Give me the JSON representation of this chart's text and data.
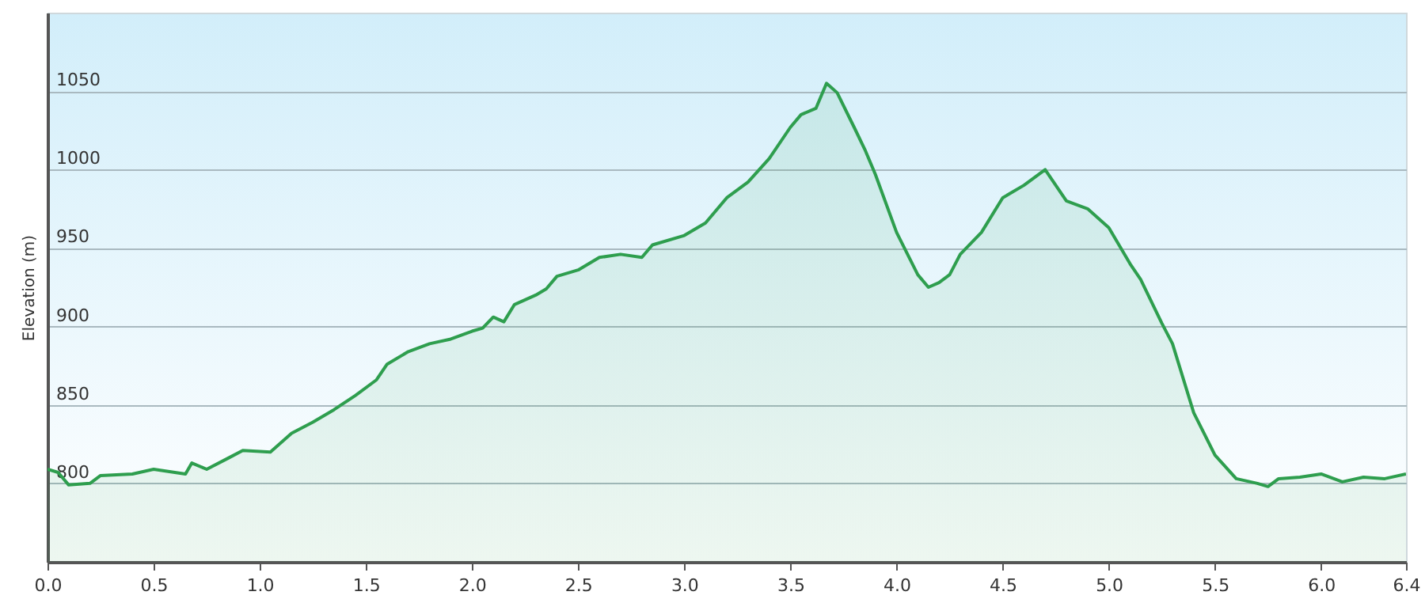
{
  "chart_data": {
    "type": "area",
    "ylabel": "Elevation (m)",
    "x": [
      0,
      0.05,
      0.1,
      0.2,
      0.25,
      0.4,
      0.5,
      0.6,
      0.65,
      0.68,
      0.75,
      0.85,
      0.92,
      1.05,
      1.15,
      1.25,
      1.35,
      1.45,
      1.55,
      1.6,
      1.7,
      1.8,
      1.9,
      2.0,
      2.05,
      2.1,
      2.15,
      2.2,
      2.3,
      2.35,
      2.4,
      2.5,
      2.6,
      2.7,
      2.8,
      2.85,
      3.0,
      3.1,
      3.2,
      3.3,
      3.4,
      3.5,
      3.55,
      3.62,
      3.67,
      3.72,
      3.8,
      3.85,
      3.9,
      4.0,
      4.1,
      4.15,
      4.2,
      4.25,
      4.3,
      4.4,
      4.5,
      4.6,
      4.7,
      4.8,
      4.9,
      5.0,
      5.1,
      5.15,
      5.25,
      5.3,
      5.4,
      5.5,
      5.6,
      5.7,
      5.75,
      5.8,
      5.9,
      6.0,
      6.1,
      6.2,
      6.3,
      6.4
    ],
    "series": [
      {
        "color": "#2e9e4e",
        "values": [
          809,
          807,
          799,
          800,
          805,
          806,
          809,
          807,
          806,
          813,
          809,
          816,
          821,
          820,
          832,
          839,
          847,
          856,
          866,
          876,
          884,
          889,
          892,
          897,
          899,
          906,
          903,
          914,
          920,
          924,
          932,
          936,
          944,
          946,
          944,
          952,
          958,
          966,
          982,
          992,
          1007,
          1027,
          1035,
          1039,
          1055,
          1049,
          1027,
          1013,
          997,
          960,
          933,
          925,
          928,
          933,
          946,
          960,
          982,
          990,
          1000,
          980,
          975,
          963,
          940,
          930,
          902,
          889,
          845,
          818,
          803,
          800,
          798,
          803,
          804,
          806,
          801,
          804,
          803,
          806
        ]
      }
    ],
    "xlim": [
      0,
      6.4
    ],
    "xticks": [
      {
        "value": 0,
        "label": "0.0"
      },
      0.5,
      {
        "value": 1,
        "label": "1.0"
      },
      1.5,
      {
        "value": 2,
        "label": "2.0"
      },
      2.5,
      {
        "value": 3,
        "label": "3.0"
      },
      3.5,
      {
        "value": 4,
        "label": "4.0"
      },
      4.5,
      {
        "value": 5,
        "label": "5.0"
      },
      5.5,
      {
        "value": 6,
        "label": "6.0"
      },
      6.4
    ],
    "ylim": [
      750,
      1100
    ],
    "yticks": [
      800,
      850,
      900,
      950,
      1000,
      1050
    ],
    "grid": "y"
  }
}
